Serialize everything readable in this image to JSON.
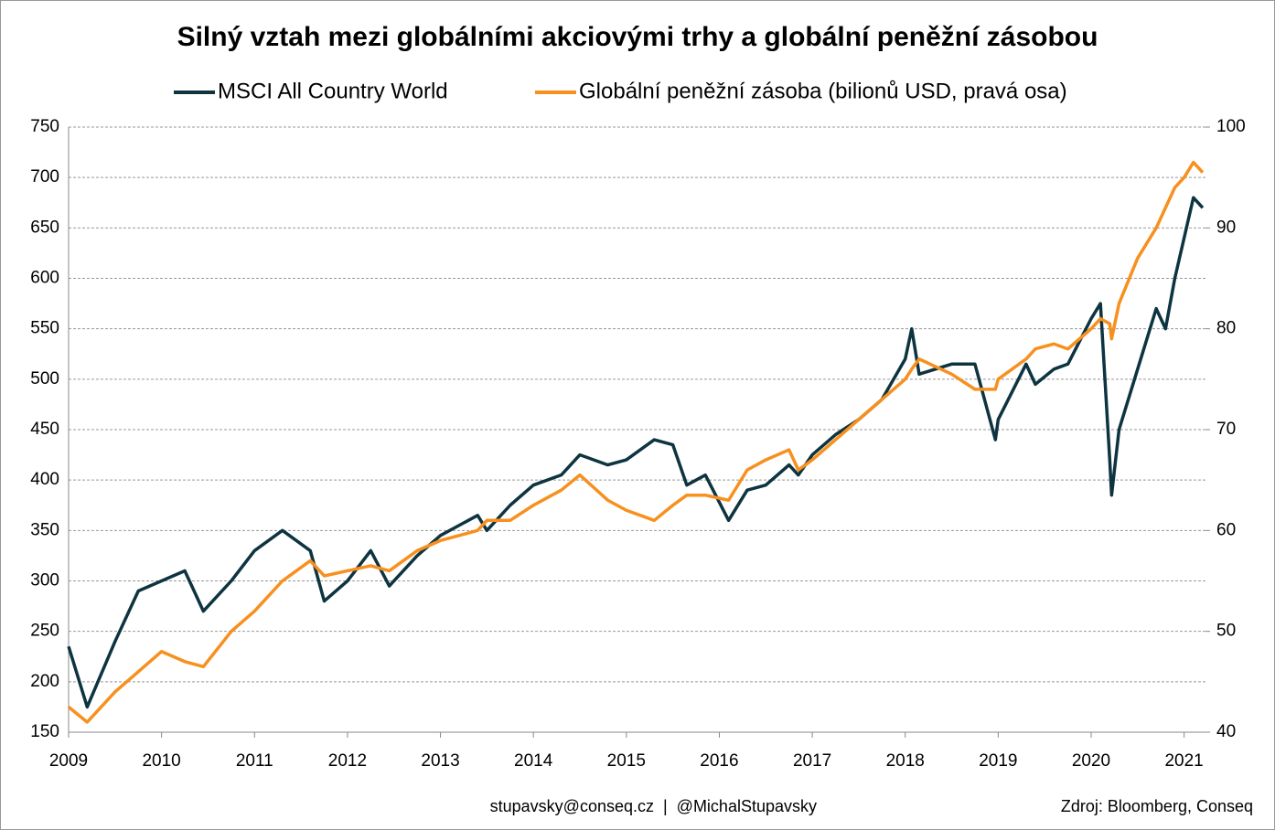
{
  "chart_data": {
    "type": "line",
    "title": "Silný vztah mezi globálními akciovými trhy a globální peněžní zásobou",
    "footer": "stupavsky@conseq.cz  |  @MichalStupavsky",
    "source": "Zdroj: Bloomberg, Conseq",
    "legend": "top",
    "grid": true,
    "x": [
      2009.0,
      2009.2,
      2009.5,
      2009.75,
      2010.0,
      2010.25,
      2010.45,
      2010.75,
      2011.0,
      2011.3,
      2011.6,
      2011.75,
      2012.0,
      2012.25,
      2012.45,
      2012.75,
      2013.0,
      2013.4,
      2013.5,
      2013.75,
      2014.0,
      2014.3,
      2014.5,
      2014.8,
      2015.0,
      2015.3,
      2015.5,
      2015.65,
      2015.85,
      2016.1,
      2016.3,
      2016.5,
      2016.75,
      2016.85,
      2017.0,
      2017.25,
      2017.5,
      2017.75,
      2018.0,
      2018.07,
      2018.15,
      2018.5,
      2018.75,
      2018.97,
      2019.0,
      2019.3,
      2019.4,
      2019.6,
      2019.75,
      2020.0,
      2020.1,
      2020.2,
      2020.22,
      2020.3,
      2020.5,
      2020.7,
      2020.8,
      2020.9,
      2021.0,
      2021.1,
      2021.2
    ],
    "series": [
      {
        "name": "MSCI All Country World",
        "color": "#0d3440",
        "values": [
          235,
          175,
          240,
          290,
          300,
          310,
          270,
          300,
          330,
          350,
          330,
          280,
          300,
          330,
          295,
          325,
          345,
          365,
          350,
          375,
          395,
          405,
          425,
          415,
          420,
          440,
          435,
          395,
          405,
          360,
          390,
          395,
          415,
          405,
          425,
          445,
          460,
          480,
          520,
          550,
          505,
          515,
          515,
          440,
          460,
          515,
          495,
          510,
          515,
          560,
          575,
          420,
          385,
          450,
          510,
          570,
          550,
          600,
          640,
          680,
          670
        ]
      },
      {
        "name": "Globální peněžní zásoba (bilionů USD, pravá osa)",
        "color": "#f7901e",
        "axis": "y2",
        "values": [
          42.5,
          41,
          44,
          46,
          48,
          47,
          46.5,
          50,
          52,
          55,
          57,
          55.5,
          56,
          56.5,
          56,
          58,
          59,
          60,
          61,
          61,
          62.5,
          64,
          65.5,
          63,
          62,
          61,
          62.5,
          63.5,
          63.5,
          63,
          66,
          67,
          68,
          66,
          67,
          69,
          71,
          73,
          75,
          76,
          77,
          75.5,
          74,
          74,
          75,
          77,
          78,
          78.5,
          78,
          80,
          81,
          80.5,
          79,
          82.5,
          87,
          90,
          92,
          94,
          95,
          96.5,
          95.5
        ]
      }
    ],
    "xlim": [
      2009,
      2021.23
    ],
    "xticks": [
      2009,
      2010,
      2011,
      2012,
      2013,
      2014,
      2015,
      2016,
      2017,
      2018,
      2019,
      2020,
      2021
    ],
    "ylim": [
      150,
      750
    ],
    "yticks": [
      150,
      200,
      250,
      300,
      350,
      400,
      450,
      500,
      550,
      600,
      650,
      700,
      750
    ],
    "y2lim": [
      40,
      100
    ],
    "y2ticks": [
      40,
      50,
      60,
      70,
      80,
      90,
      100
    ]
  }
}
